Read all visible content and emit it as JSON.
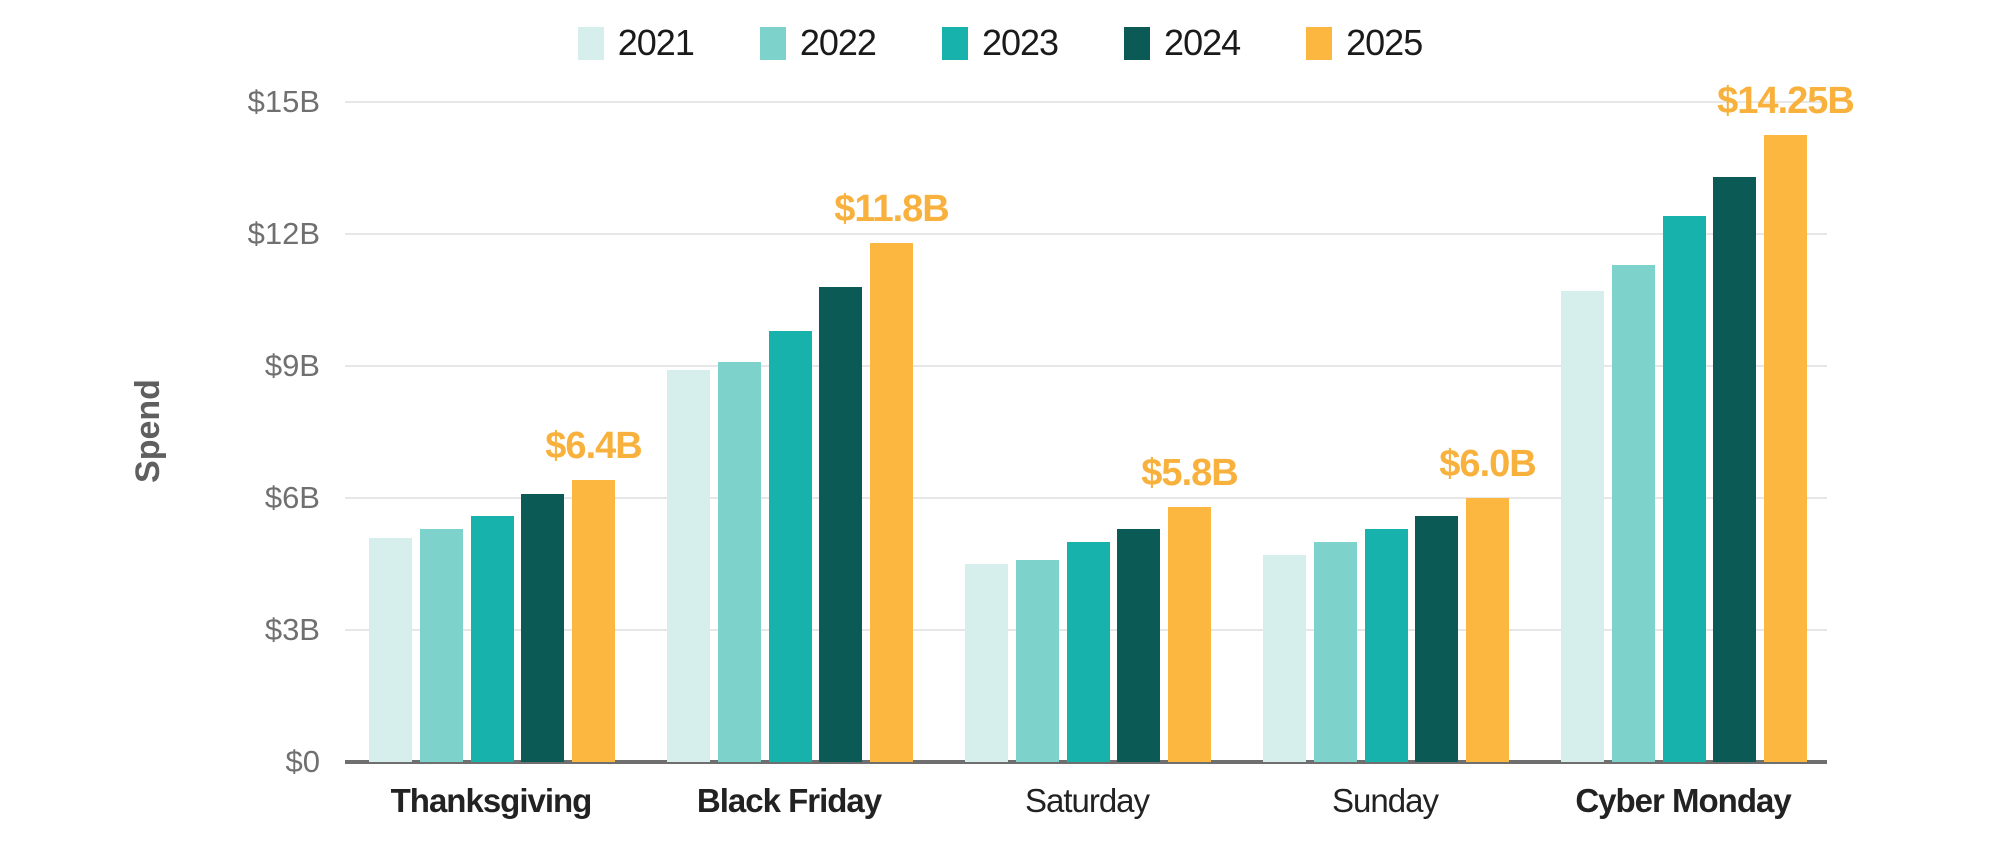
{
  "chart_data": {
    "type": "bar",
    "title": "",
    "ylabel": "Spend",
    "ylim": [
      0,
      15
    ],
    "grid": true,
    "legend_position": "top",
    "yticks": [
      {
        "value": 0,
        "label": "$0"
      },
      {
        "value": 3,
        "label": "$3B"
      },
      {
        "value": 6,
        "label": "$6B"
      },
      {
        "value": 9,
        "label": "$9B"
      },
      {
        "value": 12,
        "label": "$12B"
      },
      {
        "value": 15,
        "label": "$15B"
      }
    ],
    "categories": [
      {
        "label": "Thanksgiving",
        "bold": true
      },
      {
        "label": "Black Friday",
        "bold": true
      },
      {
        "label": "Saturday",
        "bold": false
      },
      {
        "label": "Sunday",
        "bold": false
      },
      {
        "label": "Cyber Monday",
        "bold": true
      }
    ],
    "series": [
      {
        "name": "2021",
        "color": "#d6eeec",
        "values": [
          5.1,
          8.9,
          4.5,
          4.7,
          10.7
        ]
      },
      {
        "name": "2022",
        "color": "#7dd3cb",
        "values": [
          5.3,
          9.1,
          4.6,
          5.0,
          11.3
        ]
      },
      {
        "name": "2023",
        "color": "#16b2ab",
        "values": [
          5.6,
          9.8,
          5.0,
          5.3,
          12.4
        ]
      },
      {
        "name": "2024",
        "color": "#0c5a55",
        "values": [
          6.1,
          10.8,
          5.3,
          5.6,
          13.3
        ]
      },
      {
        "name": "2025",
        "color": "#fcb740",
        "values": [
          6.4,
          11.8,
          5.8,
          6.0,
          14.25
        ]
      }
    ],
    "annotations": [
      {
        "category": "Thanksgiving",
        "series": "2025",
        "text": "$6.4B"
      },
      {
        "category": "Black Friday",
        "series": "2025",
        "text": "$11.8B"
      },
      {
        "category": "Saturday",
        "series": "2025",
        "text": "$5.8B"
      },
      {
        "category": "Sunday",
        "series": "2025",
        "text": "$6.0B"
      },
      {
        "category": "Cyber Monday",
        "series": "2025",
        "text": "$14.25B"
      }
    ],
    "annotation_color": "#f8b13c"
  },
  "colors": {
    "axis_line": "#6f6f6f",
    "gridline": "#e7e7e7",
    "tick_text": "#707070",
    "axis_title": "#5f5f5f",
    "category_text": "#222222",
    "legend_text": "#1a1a1a"
  }
}
